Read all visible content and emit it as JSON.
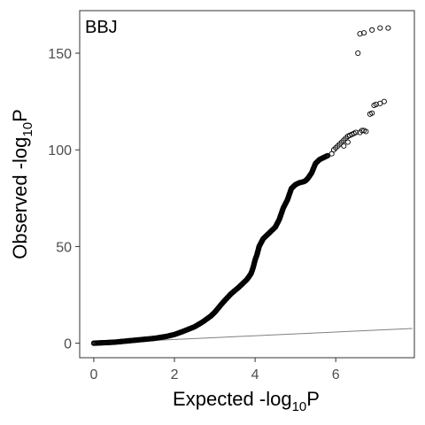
{
  "chart_data": {
    "type": "scatter",
    "panel_label": "BBJ",
    "xlabel": {
      "main": "Expected -log",
      "sub": "10",
      "tail": "P"
    },
    "ylabel": {
      "main": "Observed -log",
      "sub": "10",
      "tail": "P"
    },
    "xlim": [
      -0.35,
      7.95
    ],
    "ylim": [
      -7.5,
      172
    ],
    "x_ticks": [
      0,
      2,
      4,
      6
    ],
    "y_ticks": [
      0,
      50,
      100,
      150
    ],
    "grid": false,
    "reference_line": {
      "x": [
        0,
        7.9
      ],
      "y": [
        0,
        7.6
      ],
      "color": "#808080"
    },
    "curve": {
      "x": [
        0,
        0.5,
        1.0,
        1.5,
        1.8,
        2.0,
        2.2,
        2.5,
        2.7,
        2.9,
        3.0,
        3.2,
        3.4,
        3.6,
        3.7,
        3.8,
        3.9,
        3.95,
        4.0,
        4.05,
        4.1,
        4.2,
        4.3,
        4.4,
        4.5,
        4.6,
        4.7,
        4.8,
        4.9,
        5.0,
        5.1,
        5.2,
        5.25,
        5.3,
        5.4,
        5.5,
        5.6,
        5.7,
        5.8
      ],
      "y": [
        0,
        0.5,
        1.5,
        2.5,
        3.5,
        4.5,
        6.0,
        8.5,
        11.0,
        14.0,
        16.0,
        21.0,
        25.5,
        29.0,
        31.0,
        33.0,
        36.0,
        39.0,
        43.0,
        46.0,
        50.0,
        54.0,
        56.0,
        58.0,
        60.0,
        64.0,
        70.0,
        74.0,
        80.0,
        82.0,
        83.0,
        83.5,
        84.0,
        85.0,
        88.0,
        93.0,
        95.0,
        96.0,
        97.0
      ]
    },
    "points": {
      "x": [
        5.9,
        5.95,
        6.0,
        6.05,
        6.1,
        6.15,
        6.2,
        6.25,
        6.3,
        6.35,
        6.4,
        6.45,
        6.5,
        6.3,
        6.2,
        6.6,
        6.65,
        6.7,
        6.75,
        6.85,
        6.9,
        6.95,
        7.0,
        7.1,
        7.2,
        6.55,
        6.6,
        6.7,
        6.9,
        7.1,
        7.3
      ],
      "y": [
        98,
        100,
        101,
        102,
        103,
        104,
        105,
        106,
        107,
        107.5,
        108,
        108.5,
        109,
        104,
        102,
        109,
        110,
        110,
        109.5,
        118.5,
        119,
        123,
        123.5,
        124,
        125,
        150,
        160,
        160.5,
        162,
        163,
        163
      ]
    }
  }
}
